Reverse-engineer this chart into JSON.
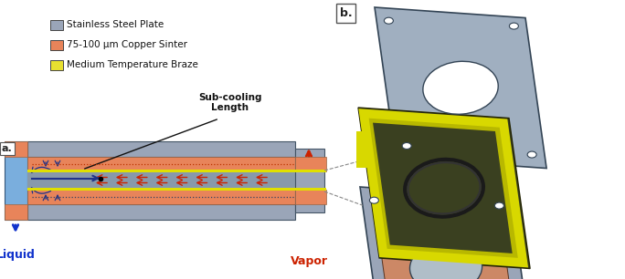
{
  "bg_color": "#ffffff",
  "fig_width": 6.84,
  "fig_height": 3.06,
  "legend_items": [
    {
      "label": "Stainless Steel Plate",
      "color": "#9aa5b8"
    },
    {
      "label": "75-100 μm Copper Sinter",
      "color": "#e8845a"
    },
    {
      "label": "Medium Temperature Braze",
      "color": "#e8e030"
    }
  ],
  "label_a": "a.",
  "label_b": "b.",
  "sub_cooling_text": "Sub-cooling\nLength",
  "liquid_text": "Liquid",
  "vapor_text": "Vapor",
  "liquid_color": "#1133cc",
  "vapor_color": "#cc2200",
  "steel_color": "#9aa5b8",
  "copper_color": "#e8845a",
  "braze_color": "#e0e000",
  "blue_channel_color": "#7aaedd"
}
